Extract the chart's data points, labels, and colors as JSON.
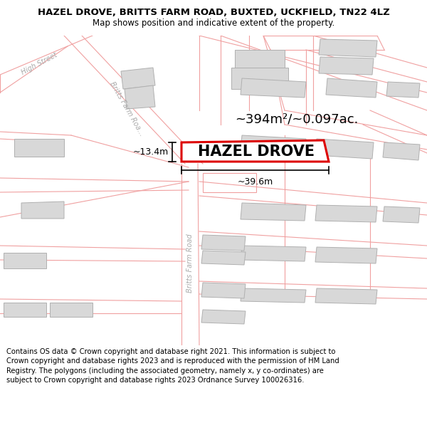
{
  "title": "HAZEL DROVE, BRITTS FARM ROAD, BUXTED, UCKFIELD, TN22 4LZ",
  "subtitle": "Map shows position and indicative extent of the property.",
  "disclaimer": "Contains OS data © Crown copyright and database right 2021. This information is subject to Crown copyright and database rights 2023 and is reproduced with the permission of HM Land Registry. The polygons (including the associated geometry, namely x, y co-ordinates) are subject to Crown copyright and database rights 2023 Ordnance Survey 100026316.",
  "area_label": "~394m²/~0.097ac.",
  "width_label": "~39.6m",
  "height_label": "~13.4m",
  "plot_label": "HAZEL DROVE",
  "map_bg": "#ffffff",
  "road_color": "#f5c5c5",
  "road_outline": "#f0a0a0",
  "building_fill": "#d8d8d8",
  "building_outline": "#b0b0b0",
  "plot_fill": "#ffffff",
  "plot_outline": "#dd0000",
  "header_bg": "#ffffff",
  "footer_bg": "#ffffff",
  "title_fontsize": 9.5,
  "subtitle_fontsize": 8.5,
  "disclaimer_fontsize": 7.2,
  "area_label_fontsize": 13,
  "plot_label_fontsize": 15,
  "dim_label_fontsize": 9,
  "road_label_color": "#aaaaaa",
  "road_label_fontsize": 7
}
